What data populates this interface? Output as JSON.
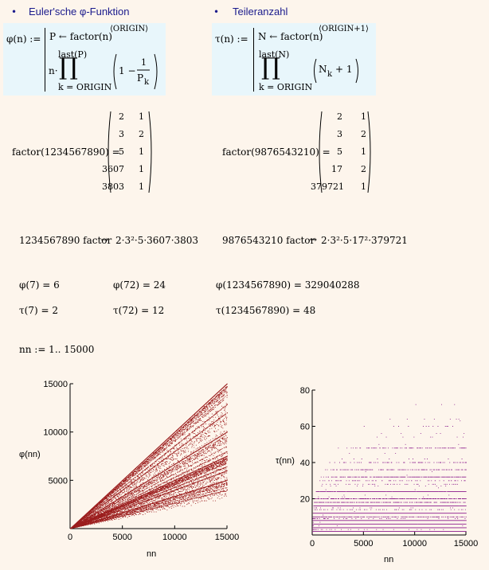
{
  "headers": {
    "bullet_glyph": "•",
    "phi_title": "Euler'sche φ-Funktion",
    "tau_title": "Teileranzahl"
  },
  "phi_def": {
    "lhs": "φ(n) :=",
    "line1": "P ← factor(n)",
    "line1_sup": "⟨ORIGIN⟩",
    "upper": "last(P)",
    "n_dot": "n·",
    "lower": "k = ORIGIN",
    "one_minus": "1 −",
    "frac_num": "1",
    "frac_den": "P",
    "frac_den_sub": "k"
  },
  "tau_def": {
    "lhs": "τ(n) :=",
    "line1": "N ← factor(n)",
    "line1_sup": "⟨ORIGIN+1⟩",
    "upper": "last(N)",
    "lower": "k = ORIGIN",
    "term": "N",
    "term_sub": "k",
    "plus_one": "+ 1"
  },
  "product_glyph": "∏",
  "factor_left": {
    "expr": "factor(1234567890) =",
    "rows": [
      [
        "2",
        "1"
      ],
      [
        "3",
        "2"
      ],
      [
        "5",
        "1"
      ],
      [
        "3607",
        "1"
      ],
      [
        "3803",
        "1"
      ]
    ]
  },
  "factor_right": {
    "expr": "factor(9876543210) =",
    "rows": [
      [
        "2",
        "1"
      ],
      [
        "3",
        "2"
      ],
      [
        "5",
        "1"
      ],
      [
        "17",
        "2"
      ],
      [
        "379721",
        "1"
      ]
    ]
  },
  "symbolic": {
    "left_num": "1234567890 factor",
    "left_arrow": "→",
    "left_result": "2·3²·5·3607·3803",
    "right_num": "9876543210 factor",
    "right_arrow": "→",
    "right_result": "2·3²·5·17²·379721"
  },
  "results": {
    "phi7": "φ(7) = 6",
    "phi72": "φ(72) = 24",
    "phibig": "φ(1234567890) = 329040288",
    "tau7": "τ(7) = 2",
    "tau72": "τ(72) = 12",
    "taubig": "τ(1234567890) = 48"
  },
  "range_def": "nn := 1.. 15000",
  "chart_data": [
    {
      "type": "scatter",
      "ylabel": "φ(nn)",
      "xlabel": "nn",
      "xlim": [
        0,
        15000
      ],
      "ylim": [
        0,
        15000
      ],
      "xticks": [
        "0",
        "5000",
        "10000",
        "15000"
      ],
      "yticks": [
        "5000",
        "10000",
        "15000"
      ],
      "n_max": 15000,
      "color": "#9b1c1c"
    },
    {
      "type": "scatter",
      "ylabel": "τ(nn)",
      "xlabel": "nn",
      "xlim": [
        0,
        15000
      ],
      "ylim": [
        0,
        80
      ],
      "xticks": [
        "0",
        "5000",
        "10000",
        "15000"
      ],
      "yticks": [
        "20",
        "40",
        "60",
        "80"
      ],
      "n_max": 15000,
      "color": "#8b1a8b"
    }
  ]
}
